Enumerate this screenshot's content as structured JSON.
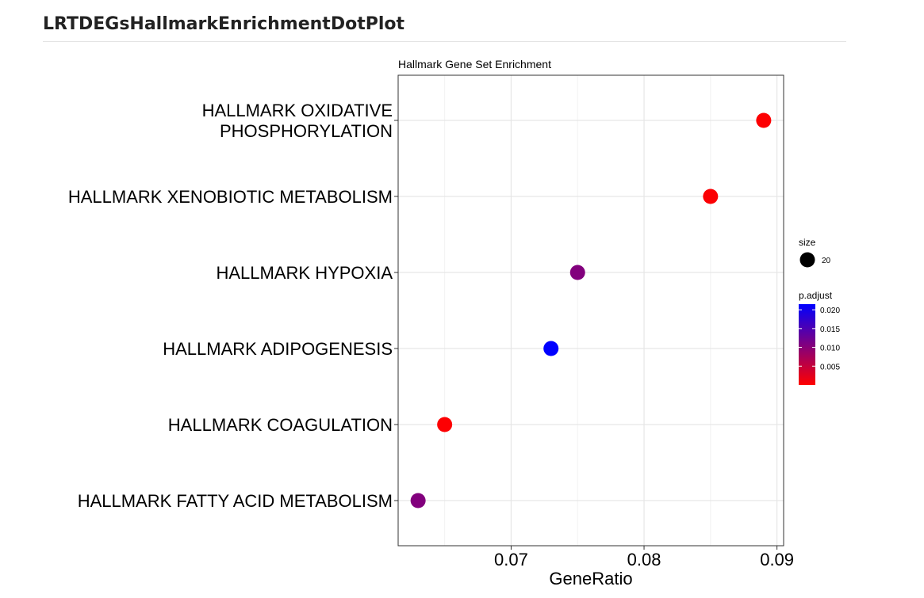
{
  "page": {
    "heading": "LRTDEGsHallmarkEnrichmentDotPlot"
  },
  "chart_data": {
    "type": "scatter",
    "title": "Hallmark Gene Set Enrichment",
    "xlabel": "GeneRatio",
    "ylabel": "",
    "xlim": [
      0.0615,
      0.0905
    ],
    "x_ticks": [
      0.07,
      0.08,
      0.09
    ],
    "x_tick_labels": [
      "0.07",
      "0.08",
      "0.09"
    ],
    "grid": true,
    "categories": [
      [
        "HALLMARK OXIDATIVE",
        "PHOSPHORYLATION"
      ],
      [
        "HALLMARK XENOBIOTIC METABOLISM"
      ],
      [
        "HALLMARK HYPOXIA"
      ],
      [
        "HALLMARK ADIPOGENESIS"
      ],
      [
        "HALLMARK COAGULATION"
      ],
      [
        "HALLMARK FATTY ACID METABOLISM"
      ]
    ],
    "x": [
      0.089,
      0.085,
      0.075,
      0.073,
      0.065,
      0.063
    ],
    "size": [
      20,
      20,
      20,
      20,
      20,
      20
    ],
    "p_adjust": [
      0.0002,
      0.0003,
      0.0105,
      0.0215,
      0.0002,
      0.0105
    ],
    "legend": {
      "placement": "right",
      "size_title": "size",
      "size_entries": [
        {
          "label": "20",
          "value": 20
        }
      ],
      "color_title": "p.adjust",
      "color_ticks": [
        0.02,
        0.015,
        0.01,
        0.005
      ],
      "color_tick_labels": [
        "0.020",
        "0.015",
        "0.010",
        "0.005"
      ],
      "color_range": [
        0.0,
        0.0215
      ],
      "low_color": "#ff0000",
      "high_color": "#0000ff"
    }
  }
}
